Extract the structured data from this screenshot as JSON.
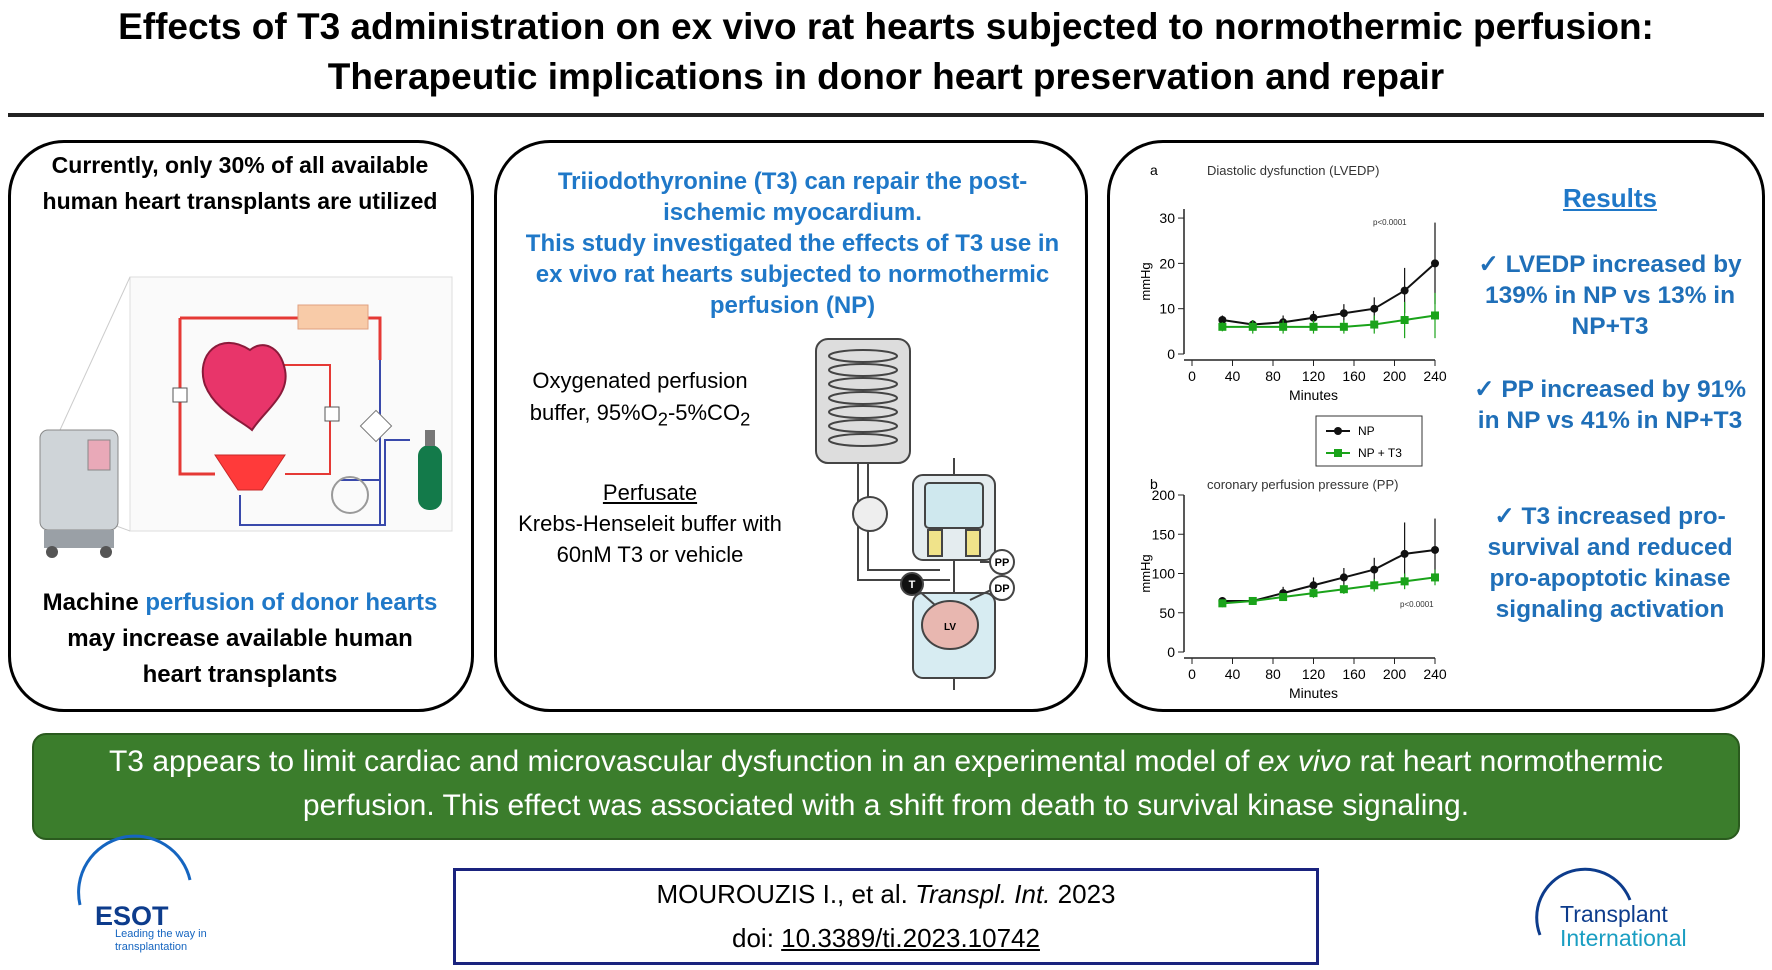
{
  "title": "Effects of T3 administration on ex vivo rat hearts subjected to normothermic perfusion: Therapeutic implications in donor heart preservation and repair",
  "left_panel": {
    "top_text": "Currently, only 30% of all available human heart transplants are utilized",
    "bottom_text": [
      "Machine ",
      "perfusion of donor hearts",
      " may increase available human heart transplants"
    ]
  },
  "middle_panel": {
    "heading": [
      "Triiodothyronine (T3) can repair the post-ischemic myocardium.",
      "This study investigated the effects of T3 use in ex vivo rat hearts subjected to normothermic perfusion (NP)"
    ],
    "buffer_label": [
      "Oxygenated perfusion buffer, 95%O",
      "2",
      "-5%CO",
      "2"
    ],
    "perfusate_title": "Perfusate",
    "perfusate_text": "Krebs-Henseleit buffer with 60nM T3 or vehicle",
    "apparatus_labels": [
      "PP",
      "DP",
      "T",
      "LV"
    ]
  },
  "chart_data": [
    {
      "type": "line",
      "label": "a",
      "title": "Diastolic dysfunction (LVEDP)",
      "y_label": "mmHg",
      "x_label": "Minutes",
      "annotation": "p<0.0001",
      "x": [
        30,
        60,
        90,
        120,
        150,
        180,
        210,
        240
      ],
      "xlim": [
        0,
        240
      ],
      "xticks": [
        0,
        40,
        80,
        120,
        160,
        200,
        240
      ],
      "ylim": [
        0,
        32
      ],
      "yticks": [
        0,
        10,
        20,
        30
      ],
      "legend": "bottom",
      "series": [
        {
          "name": "NP",
          "color": "#111111",
          "values": [
            7.5,
            6.5,
            7,
            8,
            9,
            10,
            14,
            20
          ],
          "errors": [
            1,
            1,
            1.5,
            1.5,
            2,
            2.5,
            5,
            9
          ]
        },
        {
          "name": "NP + T3",
          "color": "#1aa31a",
          "values": [
            6,
            6,
            6,
            6,
            6,
            6.5,
            7.5,
            8.5
          ],
          "errors": [
            1,
            1.5,
            1.5,
            1.5,
            1.5,
            2,
            4,
            5
          ]
        }
      ]
    },
    {
      "type": "line",
      "label": "b",
      "title": "coronary perfusion pressure (PP)",
      "y_label": "mmHg",
      "x_label": "Minutes",
      "annotation": "p<0.0001",
      "x": [
        30,
        60,
        90,
        120,
        150,
        180,
        210,
        240
      ],
      "xlim": [
        0,
        240
      ],
      "xticks": [
        0,
        40,
        80,
        120,
        160,
        200,
        240
      ],
      "ylim": [
        0,
        200
      ],
      "yticks": [
        0,
        50,
        100,
        150,
        200
      ],
      "series": [
        {
          "color": "#111111",
          "values": [
            65,
            65,
            75,
            85,
            95,
            105,
            125,
            130
          ],
          "errors": [
            5,
            5,
            8,
            10,
            12,
            15,
            40,
            40
          ]
        },
        {
          "color": "#1aa31a",
          "values": [
            62,
            65,
            70,
            75,
            80,
            85,
            90,
            95
          ],
          "errors": [
            5,
            5,
            5,
            6,
            6,
            8,
            10,
            10
          ]
        }
      ]
    }
  ],
  "results": {
    "heading": "Results",
    "items": [
      "✓ LVEDP increased by 139% in NP vs 13% in NP+T3",
      "✓ PP increased by 91% in NP vs 41% in NP+T3",
      "✓ T3 increased pro-survival and reduced pro-apoptotic kinase signaling activation"
    ]
  },
  "conclusion": [
    "T3 appears to limit cardiac and microvascular dysfunction in an experimental model of ",
    "ex vivo",
    " rat heart normothermic perfusion. This effect was associated with a shift from death to survival kinase signaling."
  ],
  "citation": {
    "line1": [
      "MOUROUZIS I., et al. ",
      "Transpl. Int.",
      " 2023"
    ],
    "line2": [
      "doi: ",
      "10.3389/ti.2023.10742"
    ]
  },
  "logos": {
    "esot": {
      "name": "ESOT",
      "tagline": "Leading the way in transplantation"
    },
    "journal": [
      "Transplant",
      "International"
    ]
  }
}
